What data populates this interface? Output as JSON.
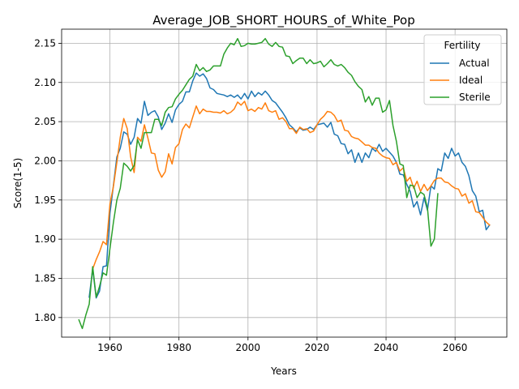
{
  "chart_data": {
    "type": "line",
    "title": "Average_JOB_SHORT_HOURS_of_White_Pop",
    "xlabel": "Years",
    "ylabel": "Score(1-5)",
    "xlim": [
      1946,
      2075
    ],
    "ylim": [
      1.775,
      2.168
    ],
    "xticks": [
      1960,
      1980,
      2000,
      2020,
      2040,
      2060
    ],
    "yticks": [
      1.8,
      1.85,
      1.9,
      1.95,
      2.0,
      2.05,
      2.1,
      2.15
    ],
    "grid": true,
    "legend": {
      "title": "Fertility",
      "placement": "upper right"
    },
    "series": [
      {
        "name": "Actual",
        "color": "#1f77b4",
        "x": [
          1954,
          1955,
          1956,
          1957,
          1958,
          1959,
          1960,
          1961,
          1962,
          1963,
          1964,
          1965,
          1966,
          1967,
          1968,
          1969,
          1970,
          1971,
          1972,
          1973,
          1974,
          1975,
          1976,
          1977,
          1978,
          1979,
          1980,
          1981,
          1982,
          1983,
          1984,
          1985,
          1986,
          1987,
          1988,
          1989,
          1990,
          1991,
          1992,
          1993,
          1994,
          1995,
          1996,
          1997,
          1998,
          1999,
          2000,
          2001,
          2002,
          2003,
          2004,
          2005,
          2006,
          2007,
          2008,
          2009,
          2010,
          2011,
          2012,
          2013,
          2014,
          2015,
          2016,
          2017,
          2018,
          2019,
          2020,
          2021,
          2022,
          2023,
          2024,
          2025,
          2026,
          2027,
          2028,
          2029,
          2030,
          2031,
          2032,
          2033,
          2034,
          2035,
          2036,
          2037,
          2038,
          2039,
          2040,
          2041,
          2042,
          2043,
          2044,
          2045,
          2046,
          2047,
          2048,
          2049,
          2050,
          2051,
          2052,
          2053,
          2054,
          2055,
          2056,
          2057,
          2058,
          2059,
          2060,
          2061,
          2062,
          2063,
          2064,
          2065,
          2066,
          2067,
          2068,
          2069,
          2070
        ],
        "values": [
          1.826,
          1.862,
          1.825,
          1.834,
          1.865,
          1.866,
          1.933,
          1.968,
          2.005,
          2.016,
          2.037,
          2.034,
          2.021,
          2.03,
          2.054,
          2.048,
          2.076,
          2.058,
          2.062,
          2.064,
          2.056,
          2.04,
          2.048,
          2.06,
          2.049,
          2.065,
          2.072,
          2.076,
          2.088,
          2.088,
          2.102,
          2.112,
          2.108,
          2.111,
          2.105,
          2.093,
          2.091,
          2.086,
          2.085,
          2.084,
          2.082,
          2.084,
          2.081,
          2.084,
          2.079,
          2.086,
          2.079,
          2.089,
          2.082,
          2.087,
          2.084,
          2.089,
          2.084,
          2.077,
          2.074,
          2.068,
          2.062,
          2.055,
          2.046,
          2.042,
          2.037,
          2.042,
          2.039,
          2.04,
          2.043,
          2.04,
          2.046,
          2.047,
          2.048,
          2.043,
          2.049,
          2.034,
          2.032,
          2.022,
          2.021,
          2.009,
          2.014,
          1.998,
          2.01,
          1.998,
          2.01,
          2.004,
          2.016,
          2.012,
          2.021,
          2.012,
          2.016,
          2.011,
          2.006,
          1.998,
          1.983,
          1.982,
          1.97,
          1.961,
          1.941,
          1.948,
          1.931,
          1.953,
          1.937,
          1.968,
          1.964,
          1.99,
          1.987,
          2.01,
          2.003,
          2.016,
          2.006,
          2.01,
          1.998,
          1.993,
          1.981,
          1.962,
          1.955,
          1.935,
          1.937,
          1.912,
          1.918
        ]
      },
      {
        "name": "Ideal",
        "color": "#ff7f0e",
        "x": [
          1955,
          1956,
          1957,
          1958,
          1959,
          1960,
          1961,
          1962,
          1963,
          1964,
          1965,
          1966,
          1967,
          1968,
          1969,
          1970,
          1971,
          1972,
          1973,
          1974,
          1975,
          1976,
          1977,
          1978,
          1979,
          1980,
          1981,
          1982,
          1983,
          1984,
          1985,
          1986,
          1987,
          1988,
          1989,
          1990,
          1991,
          1992,
          1993,
          1994,
          1995,
          1996,
          1997,
          1998,
          1999,
          2000,
          2001,
          2002,
          2003,
          2004,
          2005,
          2006,
          2007,
          2008,
          2009,
          2010,
          2011,
          2012,
          2013,
          2014,
          2015,
          2016,
          2017,
          2018,
          2019,
          2020,
          2021,
          2022,
          2023,
          2024,
          2025,
          2026,
          2027,
          2028,
          2029,
          2030,
          2031,
          2032,
          2033,
          2034,
          2035,
          2036,
          2037,
          2038,
          2039,
          2040,
          2041,
          2042,
          2043,
          2044,
          2045,
          2046,
          2047,
          2048,
          2049,
          2050,
          2051,
          2052,
          2053,
          2054,
          2055,
          2056,
          2057,
          2058,
          2059,
          2060,
          2061,
          2062,
          2063,
          2064,
          2065,
          2066,
          2067,
          2068,
          2069,
          2070
        ],
        "values": [
          1.862,
          1.874,
          1.884,
          1.897,
          1.893,
          1.945,
          1.967,
          1.998,
          2.03,
          2.054,
          2.041,
          2.005,
          1.985,
          2.03,
          2.025,
          2.046,
          2.029,
          2.01,
          2.009,
          1.988,
          1.979,
          1.986,
          2.009,
          1.996,
          2.017,
          2.022,
          2.04,
          2.047,
          2.042,
          2.056,
          2.07,
          2.06,
          2.066,
          2.063,
          2.063,
          2.062,
          2.062,
          2.061,
          2.064,
          2.06,
          2.062,
          2.066,
          2.075,
          2.071,
          2.076,
          2.064,
          2.066,
          2.063,
          2.068,
          2.066,
          2.074,
          2.064,
          2.062,
          2.064,
          2.053,
          2.055,
          2.05,
          2.041,
          2.041,
          2.035,
          2.043,
          2.04,
          2.041,
          2.036,
          2.038,
          2.046,
          2.053,
          2.057,
          2.063,
          2.062,
          2.058,
          2.05,
          2.052,
          2.039,
          2.038,
          2.031,
          2.029,
          2.028,
          2.024,
          2.02,
          2.02,
          2.017,
          2.016,
          2.01,
          2.006,
          2.004,
          2.003,
          1.995,
          1.998,
          1.987,
          1.991,
          1.974,
          1.979,
          1.965,
          1.974,
          1.961,
          1.97,
          1.962,
          1.968,
          1.975,
          1.978,
          1.978,
          1.973,
          1.972,
          1.968,
          1.965,
          1.964,
          1.955,
          1.958,
          1.946,
          1.949,
          1.935,
          1.934,
          1.928,
          1.922,
          1.918
        ]
      },
      {
        "name": "Sterile",
        "color": "#2ca02c",
        "x": [
          1951,
          1952,
          1953,
          1954,
          1955,
          1956,
          1957,
          1958,
          1959,
          1960,
          1961,
          1962,
          1963,
          1964,
          1965,
          1966,
          1967,
          1968,
          1969,
          1970,
          1971,
          1972,
          1973,
          1974,
          1975,
          1976,
          1977,
          1978,
          1979,
          1980,
          1981,
          1982,
          1983,
          1984,
          1985,
          1986,
          1987,
          1988,
          1989,
          1990,
          1991,
          1992,
          1993,
          1994,
          1995,
          1996,
          1997,
          1998,
          1999,
          2000,
          2001,
          2002,
          2003,
          2004,
          2005,
          2006,
          2007,
          2008,
          2009,
          2010,
          2011,
          2012,
          2013,
          2014,
          2015,
          2016,
          2017,
          2018,
          2019,
          2020,
          2021,
          2022,
          2023,
          2024,
          2025,
          2026,
          2027,
          2028,
          2029,
          2030,
          2031,
          2032,
          2033,
          2034,
          2035,
          2036,
          2037,
          2038,
          2039,
          2040,
          2041,
          2042,
          2043,
          2044,
          2045,
          2046,
          2047,
          2048,
          2049,
          2050,
          2051,
          2052,
          2053,
          2054,
          2055
        ],
        "values": [
          1.797,
          1.786,
          1.803,
          1.817,
          1.865,
          1.826,
          1.84,
          1.857,
          1.854,
          1.888,
          1.921,
          1.95,
          1.965,
          1.997,
          1.993,
          1.987,
          1.994,
          2.027,
          2.016,
          2.036,
          2.036,
          2.036,
          2.053,
          2.053,
          2.045,
          2.062,
          2.068,
          2.069,
          2.079,
          2.085,
          2.09,
          2.097,
          2.104,
          2.108,
          2.123,
          2.115,
          2.119,
          2.114,
          2.116,
          2.121,
          2.121,
          2.121,
          2.136,
          2.144,
          2.15,
          2.148,
          2.156,
          2.146,
          2.147,
          2.15,
          2.149,
          2.149,
          2.15,
          2.151,
          2.156,
          2.149,
          2.146,
          2.151,
          2.146,
          2.145,
          2.134,
          2.133,
          2.124,
          2.128,
          2.131,
          2.131,
          2.124,
          2.129,
          2.124,
          2.125,
          2.127,
          2.12,
          2.124,
          2.129,
          2.123,
          2.121,
          2.123,
          2.119,
          2.113,
          2.109,
          2.101,
          2.095,
          2.091,
          2.075,
          2.082,
          2.071,
          2.08,
          2.08,
          2.062,
          2.065,
          2.077,
          2.045,
          2.025,
          1.996,
          1.994,
          1.953,
          1.969,
          1.968,
          1.953,
          1.96,
          1.957,
          1.94,
          1.891,
          1.9,
          1.958
        ]
      }
    ]
  }
}
